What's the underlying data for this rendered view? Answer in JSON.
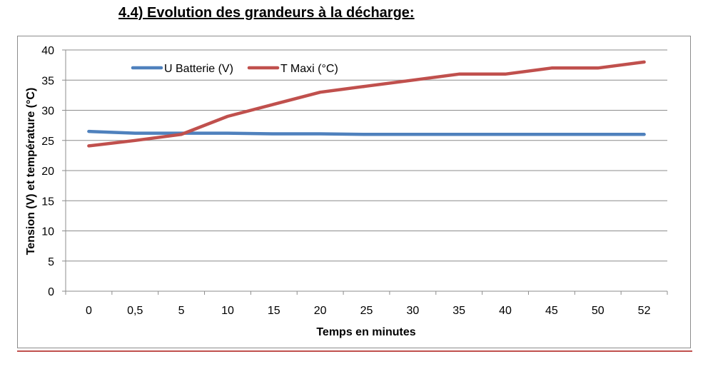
{
  "heading": {
    "prefix": "4.4) Evolution des grandeurs à la ",
    "accent": "décharge:"
  },
  "chart_data": {
    "type": "line",
    "xlabel": "Temps en minutes",
    "ylabel": "Tension  (V) et température (°C)",
    "categories": [
      "0",
      "0,5",
      "5",
      "10",
      "15",
      "20",
      "25",
      "30",
      "35",
      "40",
      "45",
      "50",
      "52"
    ],
    "ylim": [
      0,
      40
    ],
    "yticks": [
      0,
      5,
      10,
      15,
      20,
      25,
      30,
      35,
      40
    ],
    "grid": true,
    "legend_position": "top-left",
    "series": [
      {
        "name": "U Batterie (V)",
        "color": "#4f81bd",
        "values": [
          26.5,
          26.2,
          26.2,
          26.2,
          26.1,
          26.1,
          26.0,
          26.0,
          26.0,
          26.0,
          26.0,
          26.0,
          26.0
        ]
      },
      {
        "name": "T Maxi (°C)",
        "color": "#c0504d",
        "values": [
          24.1,
          25.0,
          26.0,
          29.0,
          31.0,
          33.0,
          34.0,
          35.0,
          36.0,
          36.0,
          37.0,
          37.0,
          38.0
        ]
      }
    ]
  }
}
